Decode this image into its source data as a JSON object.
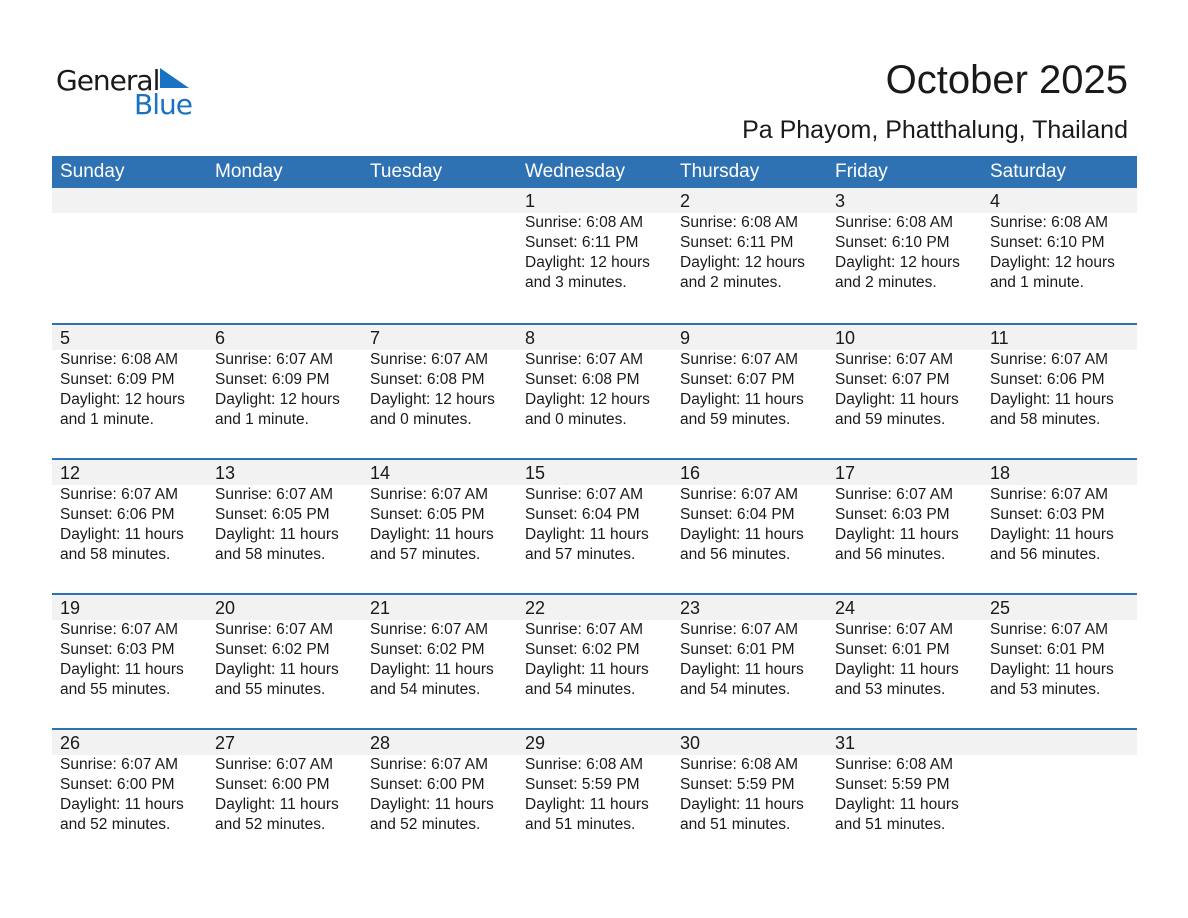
{
  "logo": {
    "line1": "General",
    "line2": "Blue"
  },
  "header": {
    "title": "October 2025",
    "location": "Pa Phayom, Phatthalung, Thailand"
  },
  "colors": {
    "header_bg": "#2e72b3",
    "brand_blue": "#1a73c0",
    "date_band": "#f2f2f2"
  },
  "weekdays": [
    "Sunday",
    "Monday",
    "Tuesday",
    "Wednesday",
    "Thursday",
    "Friday",
    "Saturday"
  ],
  "weeks": [
    [
      null,
      null,
      null,
      {
        "day": "1",
        "sunrise": "Sunrise: 6:08 AM",
        "sunset": "Sunset: 6:11 PM",
        "daylight": "Daylight: 12 hours",
        "minutes": "and 3 minutes."
      },
      {
        "day": "2",
        "sunrise": "Sunrise: 6:08 AM",
        "sunset": "Sunset: 6:11 PM",
        "daylight": "Daylight: 12 hours",
        "minutes": "and 2 minutes."
      },
      {
        "day": "3",
        "sunrise": "Sunrise: 6:08 AM",
        "sunset": "Sunset: 6:10 PM",
        "daylight": "Daylight: 12 hours",
        "minutes": "and 2 minutes."
      },
      {
        "day": "4",
        "sunrise": "Sunrise: 6:08 AM",
        "sunset": "Sunset: 6:10 PM",
        "daylight": "Daylight: 12 hours",
        "minutes": "and 1 minute."
      }
    ],
    [
      {
        "day": "5",
        "sunrise": "Sunrise: 6:08 AM",
        "sunset": "Sunset: 6:09 PM",
        "daylight": "Daylight: 12 hours",
        "minutes": "and 1 minute."
      },
      {
        "day": "6",
        "sunrise": "Sunrise: 6:07 AM",
        "sunset": "Sunset: 6:09 PM",
        "daylight": "Daylight: 12 hours",
        "minutes": "and 1 minute."
      },
      {
        "day": "7",
        "sunrise": "Sunrise: 6:07 AM",
        "sunset": "Sunset: 6:08 PM",
        "daylight": "Daylight: 12 hours",
        "minutes": "and 0 minutes."
      },
      {
        "day": "8",
        "sunrise": "Sunrise: 6:07 AM",
        "sunset": "Sunset: 6:08 PM",
        "daylight": "Daylight: 12 hours",
        "minutes": "and 0 minutes."
      },
      {
        "day": "9",
        "sunrise": "Sunrise: 6:07 AM",
        "sunset": "Sunset: 6:07 PM",
        "daylight": "Daylight: 11 hours",
        "minutes": "and 59 minutes."
      },
      {
        "day": "10",
        "sunrise": "Sunrise: 6:07 AM",
        "sunset": "Sunset: 6:07 PM",
        "daylight": "Daylight: 11 hours",
        "minutes": "and 59 minutes."
      },
      {
        "day": "11",
        "sunrise": "Sunrise: 6:07 AM",
        "sunset": "Sunset: 6:06 PM",
        "daylight": "Daylight: 11 hours",
        "minutes": "and 58 minutes."
      }
    ],
    [
      {
        "day": "12",
        "sunrise": "Sunrise: 6:07 AM",
        "sunset": "Sunset: 6:06 PM",
        "daylight": "Daylight: 11 hours",
        "minutes": "and 58 minutes."
      },
      {
        "day": "13",
        "sunrise": "Sunrise: 6:07 AM",
        "sunset": "Sunset: 6:05 PM",
        "daylight": "Daylight: 11 hours",
        "minutes": "and 58 minutes."
      },
      {
        "day": "14",
        "sunrise": "Sunrise: 6:07 AM",
        "sunset": "Sunset: 6:05 PM",
        "daylight": "Daylight: 11 hours",
        "minutes": "and 57 minutes."
      },
      {
        "day": "15",
        "sunrise": "Sunrise: 6:07 AM",
        "sunset": "Sunset: 6:04 PM",
        "daylight": "Daylight: 11 hours",
        "minutes": "and 57 minutes."
      },
      {
        "day": "16",
        "sunrise": "Sunrise: 6:07 AM",
        "sunset": "Sunset: 6:04 PM",
        "daylight": "Daylight: 11 hours",
        "minutes": "and 56 minutes."
      },
      {
        "day": "17",
        "sunrise": "Sunrise: 6:07 AM",
        "sunset": "Sunset: 6:03 PM",
        "daylight": "Daylight: 11 hours",
        "minutes": "and 56 minutes."
      },
      {
        "day": "18",
        "sunrise": "Sunrise: 6:07 AM",
        "sunset": "Sunset: 6:03 PM",
        "daylight": "Daylight: 11 hours",
        "minutes": "and 56 minutes."
      }
    ],
    [
      {
        "day": "19",
        "sunrise": "Sunrise: 6:07 AM",
        "sunset": "Sunset: 6:03 PM",
        "daylight": "Daylight: 11 hours",
        "minutes": "and 55 minutes."
      },
      {
        "day": "20",
        "sunrise": "Sunrise: 6:07 AM",
        "sunset": "Sunset: 6:02 PM",
        "daylight": "Daylight: 11 hours",
        "minutes": "and 55 minutes."
      },
      {
        "day": "21",
        "sunrise": "Sunrise: 6:07 AM",
        "sunset": "Sunset: 6:02 PM",
        "daylight": "Daylight: 11 hours",
        "minutes": "and 54 minutes."
      },
      {
        "day": "22",
        "sunrise": "Sunrise: 6:07 AM",
        "sunset": "Sunset: 6:02 PM",
        "daylight": "Daylight: 11 hours",
        "minutes": "and 54 minutes."
      },
      {
        "day": "23",
        "sunrise": "Sunrise: 6:07 AM",
        "sunset": "Sunset: 6:01 PM",
        "daylight": "Daylight: 11 hours",
        "minutes": "and 54 minutes."
      },
      {
        "day": "24",
        "sunrise": "Sunrise: 6:07 AM",
        "sunset": "Sunset: 6:01 PM",
        "daylight": "Daylight: 11 hours",
        "minutes": "and 53 minutes."
      },
      {
        "day": "25",
        "sunrise": "Sunrise: 6:07 AM",
        "sunset": "Sunset: 6:01 PM",
        "daylight": "Daylight: 11 hours",
        "minutes": "and 53 minutes."
      }
    ],
    [
      {
        "day": "26",
        "sunrise": "Sunrise: 6:07 AM",
        "sunset": "Sunset: 6:00 PM",
        "daylight": "Daylight: 11 hours",
        "minutes": "and 52 minutes."
      },
      {
        "day": "27",
        "sunrise": "Sunrise: 6:07 AM",
        "sunset": "Sunset: 6:00 PM",
        "daylight": "Daylight: 11 hours",
        "minutes": "and 52 minutes."
      },
      {
        "day": "28",
        "sunrise": "Sunrise: 6:07 AM",
        "sunset": "Sunset: 6:00 PM",
        "daylight": "Daylight: 11 hours",
        "minutes": "and 52 minutes."
      },
      {
        "day": "29",
        "sunrise": "Sunrise: 6:08 AM",
        "sunset": "Sunset: 5:59 PM",
        "daylight": "Daylight: 11 hours",
        "minutes": "and 51 minutes."
      },
      {
        "day": "30",
        "sunrise": "Sunrise: 6:08 AM",
        "sunset": "Sunset: 5:59 PM",
        "daylight": "Daylight: 11 hours",
        "minutes": "and 51 minutes."
      },
      {
        "day": "31",
        "sunrise": "Sunrise: 6:08 AM",
        "sunset": "Sunset: 5:59 PM",
        "daylight": "Daylight: 11 hours",
        "minutes": "and 51 minutes."
      },
      null
    ]
  ]
}
